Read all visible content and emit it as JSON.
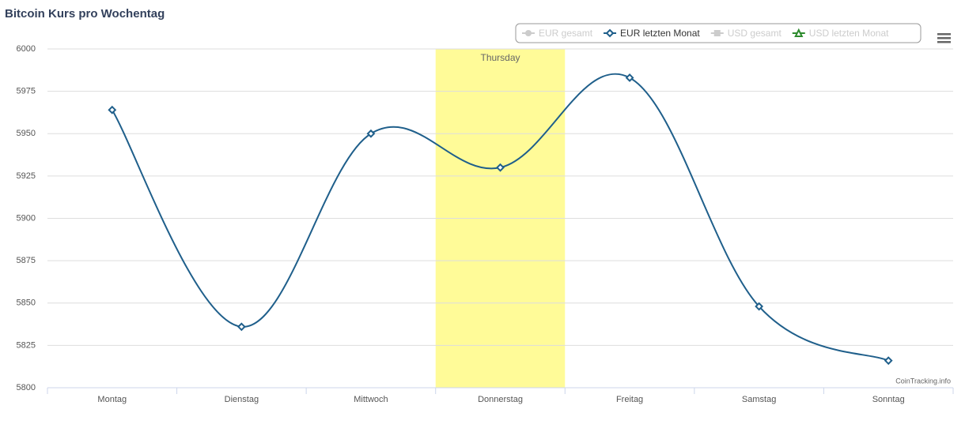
{
  "chart_data": {
    "type": "line",
    "title": "Bitcoin Kurs pro Wochentag",
    "categories": [
      "Montag",
      "Dienstag",
      "Mittwoch",
      "Donnerstag",
      "Freitag",
      "Samstag",
      "Sonntag"
    ],
    "series": [
      {
        "name": "EUR gesamt",
        "color": "#cccccc",
        "marker": "circle",
        "visible": false
      },
      {
        "name": "EUR letzten Monat",
        "color": "#1f5f8b",
        "marker": "diamond",
        "visible": true,
        "values": [
          5964,
          5836,
          5950,
          5930,
          5983,
          5848,
          5816
        ]
      },
      {
        "name": "USD gesamt",
        "color": "#cccccc",
        "marker": "square",
        "visible": false
      },
      {
        "name": "USD letzten Monat",
        "color": "#2e8b2e",
        "marker": "triangle",
        "visible": false
      }
    ],
    "ylim": [
      5800,
      6000
    ],
    "yticks": [
      5800,
      5825,
      5850,
      5875,
      5900,
      5925,
      5950,
      5975,
      6000
    ],
    "grid": true,
    "plot_band": {
      "category": "Donnerstag",
      "label": "Thursday",
      "color": "#fffb98"
    },
    "credits": "CoinTracking.info"
  }
}
